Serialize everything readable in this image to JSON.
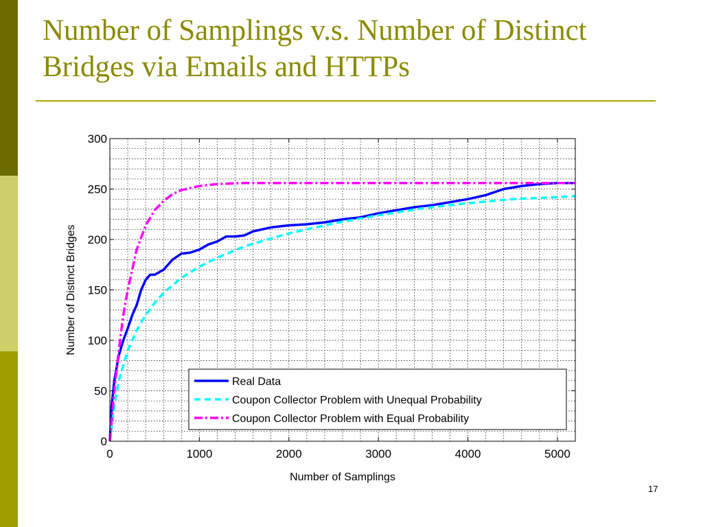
{
  "slide": {
    "title": "Number of Samplings v.s. Number of Distinct Bridges via Emails and HTTPs",
    "page_number": "17"
  },
  "colors": {
    "sidebar_top": "#6b6b00",
    "sidebar_middle": "#cfcf6a",
    "sidebar_bottom": "#9e9e00",
    "title": "#8a8a00",
    "real_data": "#0000ff",
    "unequal": "#00ffff",
    "equal": "#ff00ff"
  },
  "chart_data": {
    "type": "line",
    "xlabel": "Number of Samplings",
    "ylabel": "Number of Distinct Bridges",
    "xlim": [
      0,
      5200
    ],
    "ylim": [
      0,
      300
    ],
    "xticks": [
      0,
      1000,
      2000,
      3000,
      4000,
      5000
    ],
    "yticks": [
      0,
      50,
      100,
      150,
      200,
      250,
      300
    ],
    "grid": true,
    "legend_position": "bottom-right",
    "series": [
      {
        "name": "Real Data",
        "color": "#0000ff",
        "style": "solid",
        "x": [
          0,
          20,
          50,
          100,
          150,
          200,
          250,
          300,
          350,
          400,
          450,
          500,
          600,
          700,
          800,
          900,
          1000,
          1100,
          1200,
          1300,
          1400,
          1500,
          1600,
          1700,
          1800,
          1900,
          2000,
          2200,
          2400,
          2600,
          2800,
          3000,
          3200,
          3400,
          3600,
          3800,
          4000,
          4200,
          4400,
          4600,
          4800,
          5000,
          5200
        ],
        "y": [
          0,
          35,
          60,
          85,
          100,
          112,
          125,
          135,
          150,
          160,
          165,
          165,
          170,
          180,
          186,
          187,
          190,
          195,
          198,
          203,
          203,
          204,
          208,
          210,
          212,
          213,
          214,
          215,
          217,
          220,
          222,
          226,
          229,
          232,
          234,
          237,
          240,
          244,
          250,
          253,
          255,
          256,
          256
        ]
      },
      {
        "name": "Coupon Collector Problem with Unequal Probability",
        "color": "#00ffff",
        "style": "dashed",
        "x": [
          0,
          50,
          100,
          200,
          300,
          400,
          500,
          600,
          800,
          1000,
          1200,
          1500,
          1800,
          2000,
          2500,
          3000,
          3500,
          4000,
          4500,
          5000,
          5200
        ],
        "y": [
          0,
          35,
          60,
          90,
          110,
          125,
          137,
          147,
          162,
          173,
          182,
          193,
          201,
          206,
          216,
          224,
          231,
          236,
          240,
          242,
          243
        ]
      },
      {
        "name": "Coupon Collector Problem with Equal Probability",
        "color": "#ff00ff",
        "style": "dashdot",
        "x": [
          0,
          50,
          100,
          150,
          200,
          300,
          400,
          500,
          600,
          700,
          800,
          1000,
          1200,
          1500,
          2000,
          3000,
          4000,
          5200
        ],
        "y": [
          0,
          50,
          90,
          125,
          150,
          190,
          214,
          229,
          238,
          245,
          249,
          253,
          255,
          256,
          256,
          256,
          256,
          256
        ]
      }
    ]
  }
}
